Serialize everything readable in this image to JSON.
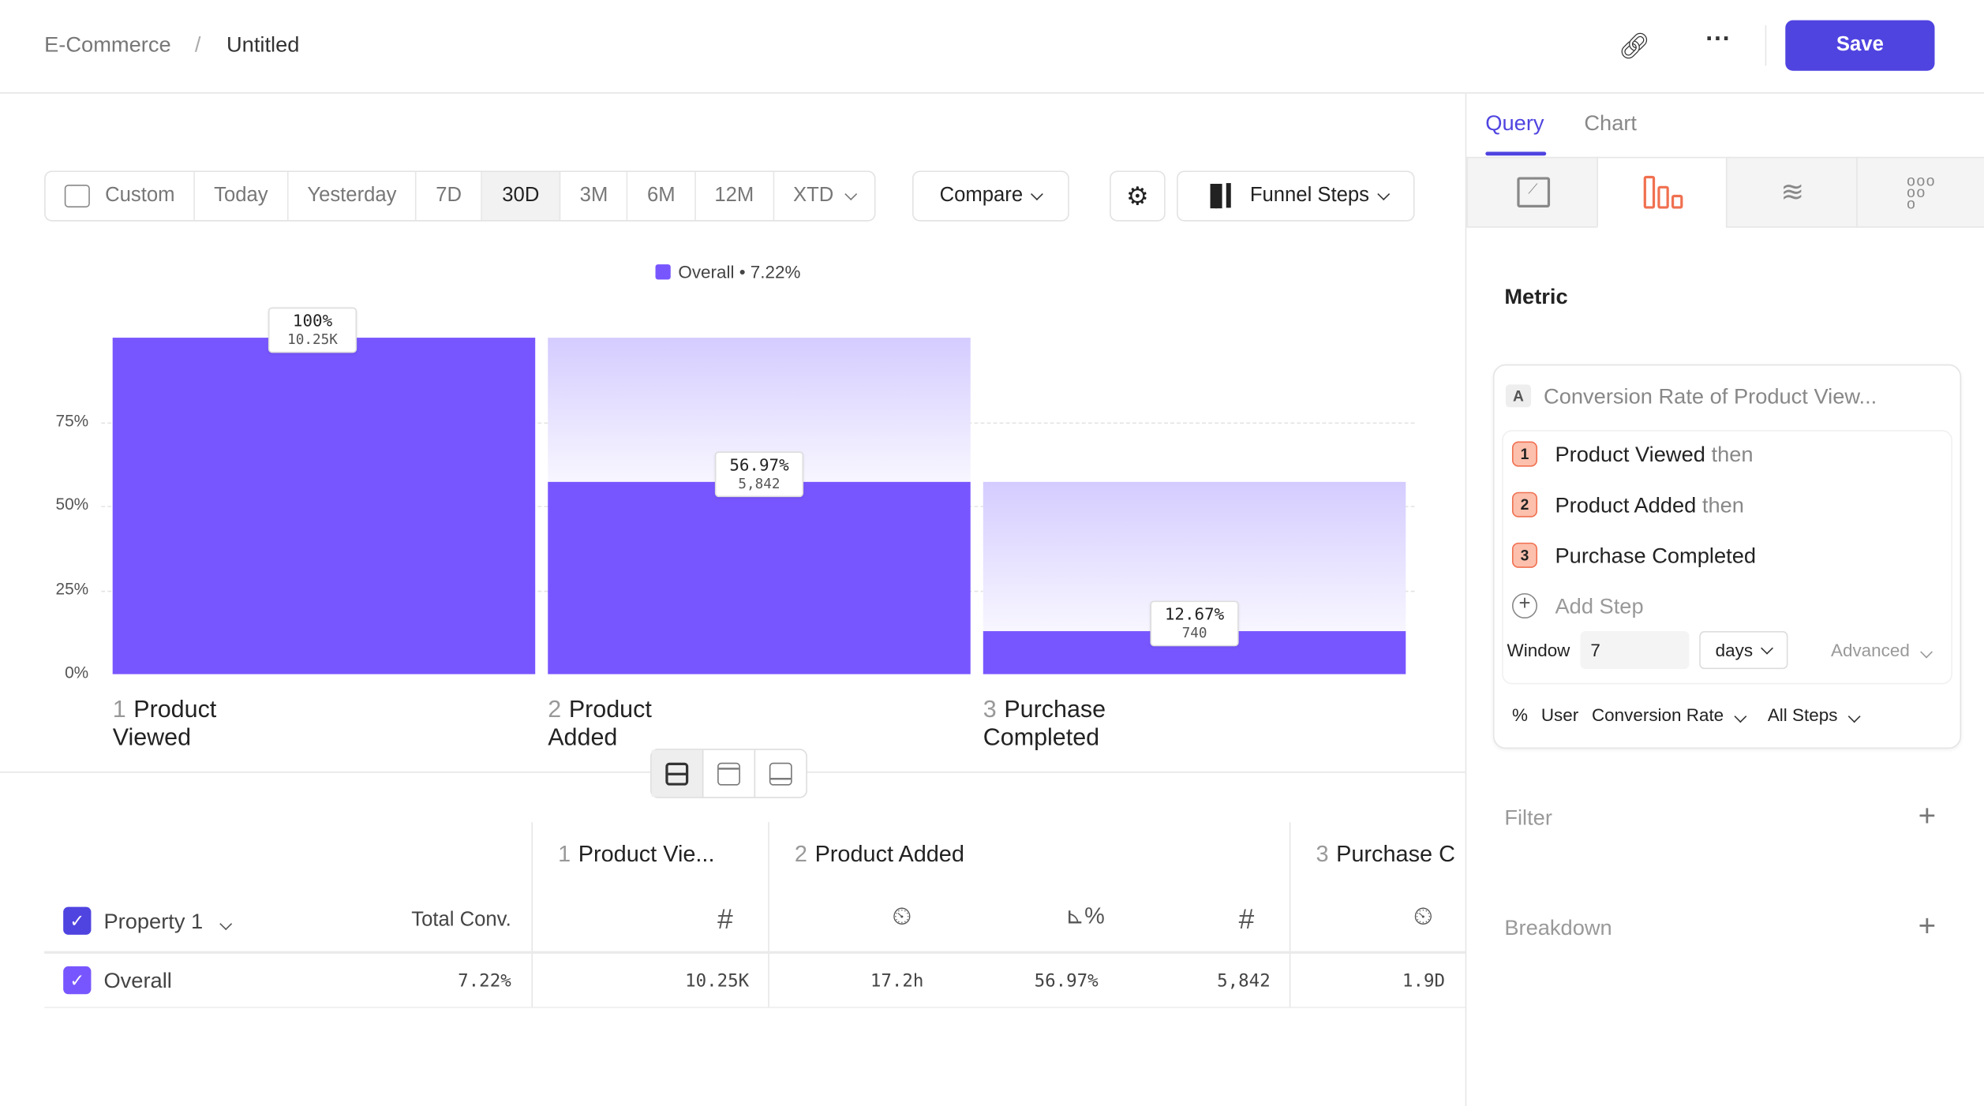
{
  "breadcrumb": {
    "root": "E-Commerce",
    "separator": "/",
    "current": "Untitled"
  },
  "header": {
    "save_label": "Save",
    "link_icon": "link-icon",
    "more_icon": "more-icon"
  },
  "date_range": {
    "options": [
      "Custom",
      "Today",
      "Yesterday",
      "7D",
      "30D",
      "3M",
      "6M",
      "12M",
      "XTD"
    ],
    "selected": "30D"
  },
  "toolbar": {
    "compare_label": "Compare",
    "chart_type_label": "Funnel Steps"
  },
  "colors": {
    "accent": "#4f44e0",
    "bar": "#7856ff",
    "bar_light": "#d4ccff",
    "step_badge": "#f07050"
  },
  "chart_data": {
    "type": "bar",
    "legend": "Overall • 7.22%",
    "categories": [
      "Product Viewed",
      "Product Added",
      "Purchase Completed"
    ],
    "step_numbers": [
      "1",
      "2",
      "3"
    ],
    "values": [
      100,
      56.97,
      12.67
    ],
    "value_labels": [
      "100%",
      "56.97%",
      "12.67%"
    ],
    "count_labels": [
      "10.25K",
      "5,842",
      "740"
    ],
    "y_ticks": [
      "0%",
      "25%",
      "50%",
      "75%"
    ],
    "ylim": [
      0,
      100
    ]
  },
  "table": {
    "property_label": "Property 1",
    "total_conv_label": "Total Conv.",
    "step_headers": [
      "1",
      "Product Vie...",
      "2",
      "Product Added",
      "3",
      "Purchase C"
    ],
    "row": {
      "label": "Overall",
      "total_conv": "7.22%",
      "cells": [
        "10.25K",
        "17.2h",
        "56.97%",
        "5,842",
        "1.9D"
      ]
    }
  },
  "panel": {
    "tabs": [
      "Query",
      "Chart"
    ],
    "metric_title": "Metric",
    "metric_letter": "A",
    "metric_name": "Conversion Rate of Product View...",
    "steps": [
      {
        "n": "1",
        "name": "Product Viewed",
        "suffix": "then"
      },
      {
        "n": "2",
        "name": "Product Added",
        "suffix": "then"
      },
      {
        "n": "3",
        "name": "Purchase Completed",
        "suffix": ""
      }
    ],
    "add_step": "Add Step",
    "window_label": "Window",
    "window_value": "7",
    "window_unit": "days",
    "advanced": "Advanced",
    "percent": "%",
    "user": "User",
    "conversion_rate": "Conversion Rate",
    "all_steps": "All Steps",
    "filter": "Filter",
    "breakdown": "Breakdown"
  }
}
